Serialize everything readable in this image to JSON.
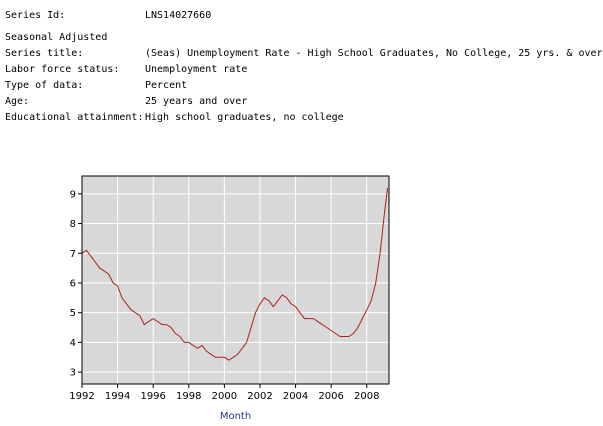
{
  "meta": {
    "series_id_label": "Series Id:",
    "series_id_value": "LNS14027660",
    "seasonal": "Seasonal Adjusted",
    "series_title_label": "Series title:",
    "series_title_value": "(Seas) Unemployment Rate - High School Graduates, No College, 25 yrs. & over",
    "labor_force_label": "Labor force status:",
    "labor_force_value": "Unemployment rate",
    "type_label": "Type of data:",
    "type_value": "Percent",
    "age_label": "Age:",
    "age_value": "25 years and over",
    "education_label": "Educational attainment:",
    "education_value": "High school graduates, no college"
  },
  "chart_data": {
    "type": "line",
    "title": "",
    "xlabel": "Month",
    "ylabel": "",
    "xlim": [
      1992,
      2009.25
    ],
    "ylim": [
      2.6,
      9.6
    ],
    "xticks": [
      1992,
      1994,
      1996,
      1998,
      2000,
      2002,
      2004,
      2006,
      2008
    ],
    "yticks": [
      3,
      4,
      5,
      6,
      7,
      8,
      9
    ],
    "grid": true,
    "line_color": "#b02020",
    "plot_bg": "#d8d8d8",
    "series": [
      {
        "x": [
          1992.0,
          1992.25,
          1992.5,
          1992.75,
          1993.0,
          1993.25,
          1993.5,
          1993.75,
          1994.0,
          1994.25,
          1994.5,
          1994.75,
          1995.0,
          1995.25,
          1995.5,
          1995.75,
          1996.0,
          1996.25,
          1996.5,
          1996.75,
          1997.0,
          1997.25,
          1997.5,
          1997.75,
          1998.0,
          1998.25,
          1998.5,
          1998.75,
          1999.0,
          1999.25,
          1999.5,
          1999.75,
          2000.0,
          2000.25,
          2000.5,
          2000.75,
          2001.0,
          2001.25,
          2001.5,
          2001.75,
          2002.0,
          2002.25,
          2002.5,
          2002.75,
          2003.0,
          2003.25,
          2003.5,
          2003.75,
          2004.0,
          2004.25,
          2004.5,
          2004.75,
          2005.0,
          2005.25,
          2005.5,
          2005.75,
          2006.0,
          2006.25,
          2006.5,
          2006.75,
          2007.0,
          2007.25,
          2007.5,
          2007.75,
          2008.0,
          2008.25,
          2008.5,
          2008.75,
          2009.0,
          2009.17
        ],
        "values": [
          7.0,
          7.1,
          6.9,
          6.7,
          6.5,
          6.4,
          6.3,
          6.0,
          5.9,
          5.5,
          5.3,
          5.1,
          5.0,
          4.9,
          4.6,
          4.7,
          4.8,
          4.7,
          4.6,
          4.6,
          4.5,
          4.3,
          4.2,
          4.0,
          4.0,
          3.9,
          3.8,
          3.9,
          3.7,
          3.6,
          3.5,
          3.5,
          3.5,
          3.4,
          3.5,
          3.6,
          3.8,
          4.0,
          4.5,
          5.0,
          5.3,
          5.5,
          5.4,
          5.2,
          5.4,
          5.6,
          5.5,
          5.3,
          5.2,
          5.0,
          4.8,
          4.8,
          4.8,
          4.7,
          4.6,
          4.5,
          4.4,
          4.3,
          4.2,
          4.2,
          4.2,
          4.3,
          4.5,
          4.8,
          5.1,
          5.4,
          6.0,
          7.0,
          8.4,
          9.2
        ]
      }
    ]
  }
}
